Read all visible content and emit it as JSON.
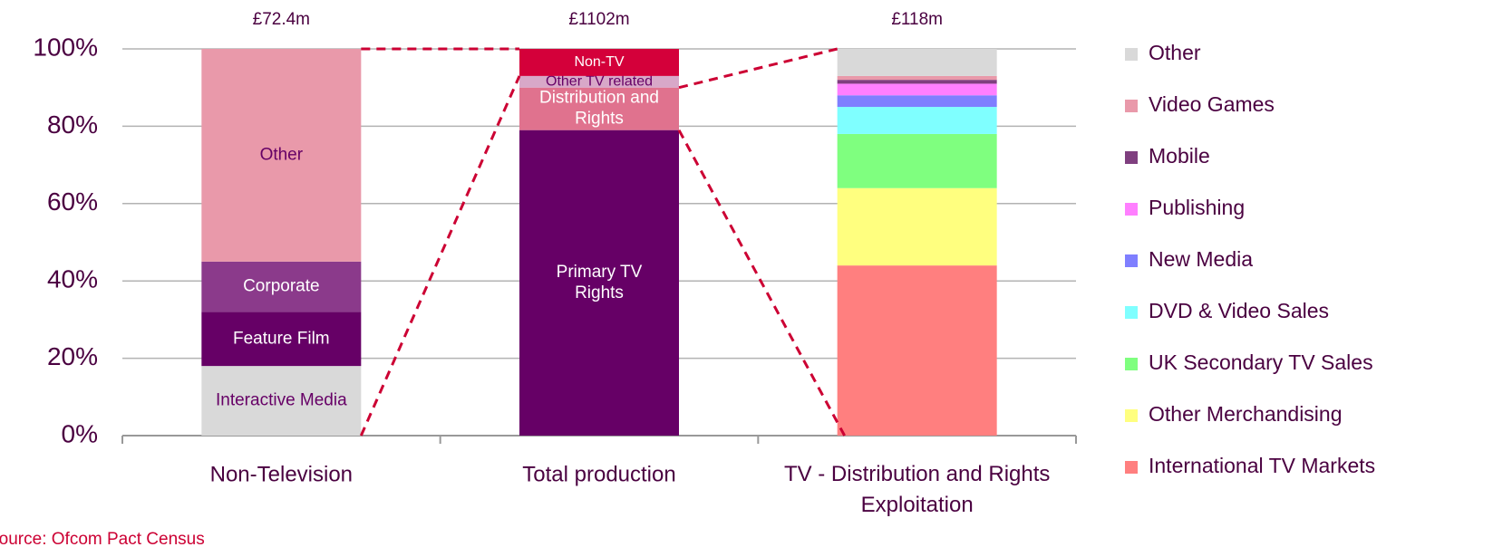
{
  "chart_data": {
    "type": "stacked_bar_100",
    "source": "Source: Ofcom Pact Census",
    "ylim": [
      0,
      100
    ],
    "yticks": [
      {
        "value": 0,
        "label": "0%"
      },
      {
        "value": 20,
        "label": "20%"
      },
      {
        "value": 40,
        "label": "40%"
      },
      {
        "value": 60,
        "label": "60%"
      },
      {
        "value": 80,
        "label": "80%"
      },
      {
        "value": 100,
        "label": "100%"
      }
    ],
    "grid": true,
    "categories": [
      "Non-Television",
      "Total production",
      "TV - Distribution and Rights Exploitation"
    ],
    "totals": [
      "£72.4m",
      "£1102m",
      "£118m"
    ],
    "bars": [
      {
        "label_inside": true,
        "segments": [
          {
            "name": "Interactive Media",
            "value": 18,
            "color": "#d9d9d9",
            "text_color": "#660066"
          },
          {
            "name": "Feature Film",
            "value": 14,
            "color": "#660066",
            "text_color": "#ffffff"
          },
          {
            "name": "Corporate",
            "value": 13,
            "color": "#8b3a8b",
            "text_color": "#ffffff"
          },
          {
            "name": "Other",
            "value": 55,
            "color": "#e999aa",
            "text_color": "#660066"
          }
        ]
      },
      {
        "label_inside": true,
        "segments": [
          {
            "name": "Primary TV Rights",
            "value": 79,
            "color": "#660066",
            "text_color": "#ffffff"
          },
          {
            "name": "Distribution and Rights",
            "value": 11,
            "color": "#e0728e",
            "text_color": "#ffffff"
          },
          {
            "name": "Other TV related",
            "value": 3,
            "color": "#d8a8c8",
            "text_color": "#660066"
          },
          {
            "name": "Non-TV",
            "value": 7,
            "color": "#d4003a",
            "text_color": "#ffffff"
          }
        ]
      },
      {
        "label_inside": false,
        "segments": [
          {
            "name": "International TV Markets",
            "value": 44,
            "color": "#ff7f7f"
          },
          {
            "name": "Other Merchandising",
            "value": 20,
            "color": "#ffff7f"
          },
          {
            "name": "UK Secondary TV Sales",
            "value": 14,
            "color": "#7fff7f"
          },
          {
            "name": "DVD & Video Sales",
            "value": 7,
            "color": "#7fffff"
          },
          {
            "name": "New Media",
            "value": 3,
            "color": "#7f7fff"
          },
          {
            "name": "Publishing",
            "value": 3,
            "color": "#ff7fff"
          },
          {
            "name": "Mobile",
            "value": 1,
            "color": "#7f3f7f"
          },
          {
            "name": "Video Games",
            "value": 1,
            "color": "#e999aa"
          },
          {
            "name": "Other",
            "value": 7,
            "color": "#d9d9d9"
          }
        ]
      }
    ]
  }
}
